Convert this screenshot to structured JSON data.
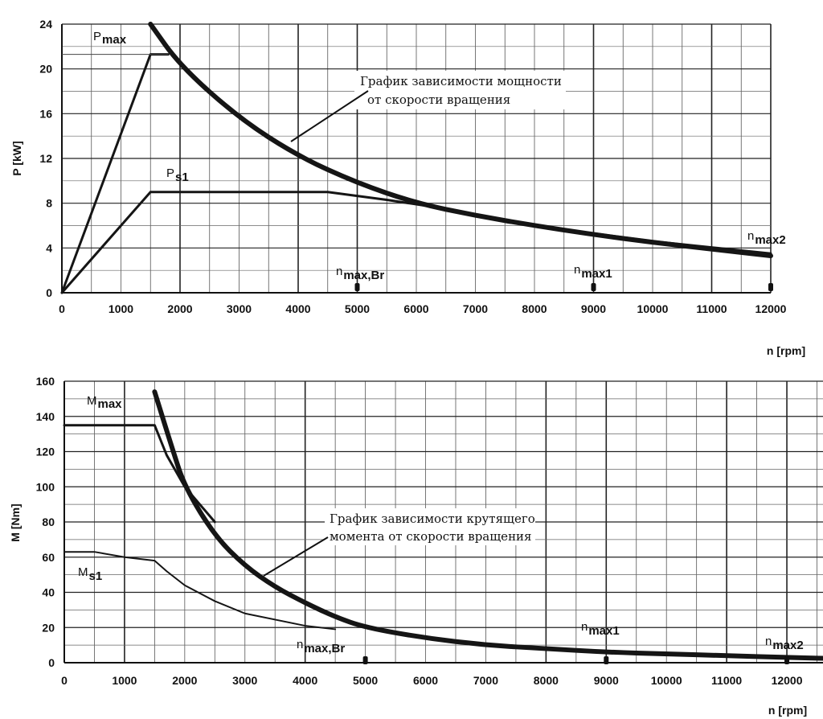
{
  "chart_data": [
    {
      "type": "line",
      "xlabel": "n [rpm]",
      "ylabel": "P [kW]",
      "xlim": [
        0,
        12000
      ],
      "ylim": [
        0,
        24
      ],
      "x_ticks": [
        0,
        1000,
        2000,
        3000,
        4000,
        5000,
        6000,
        7000,
        8000,
        9000,
        10000,
        11000,
        12000
      ],
      "y_ticks": [
        0,
        4,
        8,
        12,
        16,
        20,
        24
      ],
      "grid": true,
      "series": [
        {
          "name": "P max",
          "label_main": "P",
          "label_sub": "max",
          "x": [
            0,
            1500,
            1800
          ],
          "y": [
            0,
            21.3,
            21.3
          ]
        },
        {
          "name": "P s1",
          "label_main": "P",
          "label_sub": "s1",
          "x": [
            0,
            1500,
            4500,
            5500,
            6500,
            8000,
            10000,
            12000
          ],
          "y": [
            0,
            9.0,
            9.0,
            8.3,
            7.5,
            6.0,
            4.6,
            3.5
          ]
        },
        {
          "name": "power hyperbola",
          "x": [
            1500,
            2000,
            3000,
            4000,
            5000,
            6000,
            7000,
            8000,
            9000,
            10000,
            11000,
            12000
          ],
          "y": [
            27.0,
            20.3,
            15.6,
            12.2,
            9.8,
            8.0,
            6.9,
            6.0,
            5.2,
            4.5,
            3.9,
            3.3
          ]
        }
      ],
      "markers": [
        {
          "name": "n max,Br",
          "label_main": "n",
          "label_sub": "max,Br",
          "x": 5000
        },
        {
          "name": "n max1",
          "label_main": "n",
          "label_sub": "max1",
          "x": 9000
        },
        {
          "name": "n max2",
          "label_main": "n",
          "label_sub": "max2",
          "x": 12000
        }
      ],
      "annotation": {
        "line1": "График зависимости мощности",
        "line2": "от скорости вращения"
      }
    },
    {
      "type": "line",
      "xlabel": "n [rpm]",
      "ylabel": "M [Nm]",
      "xlim": [
        0,
        12000
      ],
      "ylim": [
        0,
        160
      ],
      "x_ticks": [
        0,
        1000,
        2000,
        3000,
        4000,
        5000,
        6000,
        7000,
        8000,
        9000,
        10000,
        11000,
        12000
      ],
      "y_ticks": [
        0,
        20,
        40,
        60,
        80,
        100,
        120,
        140,
        160
      ],
      "grid": true,
      "series": [
        {
          "name": "M max",
          "label_main": "M",
          "label_sub": "max",
          "x": [
            0,
            1500,
            1700,
            2000,
            2500
          ],
          "y": [
            135,
            135,
            118,
            100,
            80
          ]
        },
        {
          "name": "M s1",
          "label_main": "M",
          "label_sub": "s1",
          "x": [
            0,
            500,
            1000,
            1500,
            1700,
            2000,
            2500,
            3000,
            4000,
            4500
          ],
          "y": [
            63,
            63,
            60,
            58,
            52,
            44,
            35,
            28,
            21,
            19
          ]
        },
        {
          "name": "torque hyperbola",
          "x": [
            1500,
            1800,
            2000,
            2500,
            3000,
            3500,
            4000,
            4500,
            5000,
            6000,
            7000,
            8000,
            9000,
            10000,
            11000,
            12000,
            12600
          ],
          "y": [
            154,
            121,
            100,
            72,
            55,
            43,
            34,
            26,
            20,
            14,
            10,
            8,
            6,
            5,
            4,
            3,
            2.5
          ]
        }
      ],
      "markers": [
        {
          "name": "n max,Br",
          "label_main": "n",
          "label_sub": "max,Br",
          "x": 5000
        },
        {
          "name": "n max1",
          "label_main": "n",
          "label_sub": "max1",
          "x": 9000
        },
        {
          "name": "n max2",
          "label_main": "n",
          "label_sub": "max2",
          "x": 12000
        }
      ],
      "annotation": {
        "line1": "График зависимости крутящего",
        "line2": "момента от скорости вращения"
      }
    }
  ]
}
